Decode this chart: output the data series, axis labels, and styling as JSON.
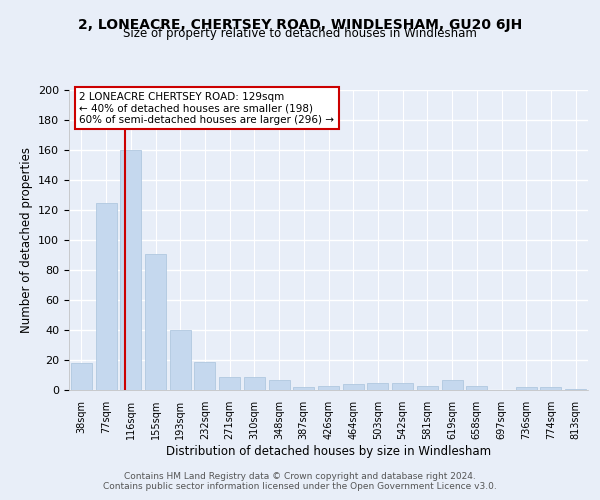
{
  "title1": "2, LONEACRE, CHERTSEY ROAD, WINDLESHAM, GU20 6JH",
  "title2": "Size of property relative to detached houses in Windlesham",
  "xlabel": "Distribution of detached houses by size in Windlesham",
  "ylabel": "Number of detached properties",
  "bar_labels": [
    "38sqm",
    "77sqm",
    "116sqm",
    "155sqm",
    "193sqm",
    "232sqm",
    "271sqm",
    "310sqm",
    "348sqm",
    "387sqm",
    "426sqm",
    "464sqm",
    "503sqm",
    "542sqm",
    "581sqm",
    "619sqm",
    "658sqm",
    "697sqm",
    "736sqm",
    "774sqm",
    "813sqm"
  ],
  "bar_values": [
    18,
    125,
    160,
    91,
    40,
    19,
    9,
    9,
    7,
    2,
    3,
    4,
    5,
    5,
    3,
    7,
    3,
    0,
    2,
    2,
    1
  ],
  "bar_color": "#c5d8ee",
  "bar_edge_color": "#b0c8e0",
  "vline_color": "#cc0000",
  "annotation_title": "2 LONEACRE CHERTSEY ROAD: 129sqm",
  "annotation_line1": "← 40% of detached houses are smaller (198)",
  "annotation_line2": "60% of semi-detached houses are larger (296) →",
  "annotation_box_facecolor": "#ffffff",
  "annotation_box_edgecolor": "#cc0000",
  "ylim": [
    0,
    200
  ],
  "yticks": [
    0,
    20,
    40,
    60,
    80,
    100,
    120,
    140,
    160,
    180,
    200
  ],
  "footer1": "Contains HM Land Registry data © Crown copyright and database right 2024.",
  "footer2": "Contains public sector information licensed under the Open Government Licence v3.0.",
  "bg_color": "#e8eef8",
  "plot_bg_color": "#e8eef8",
  "grid_color": "#ffffff",
  "vline_xindex": 2
}
